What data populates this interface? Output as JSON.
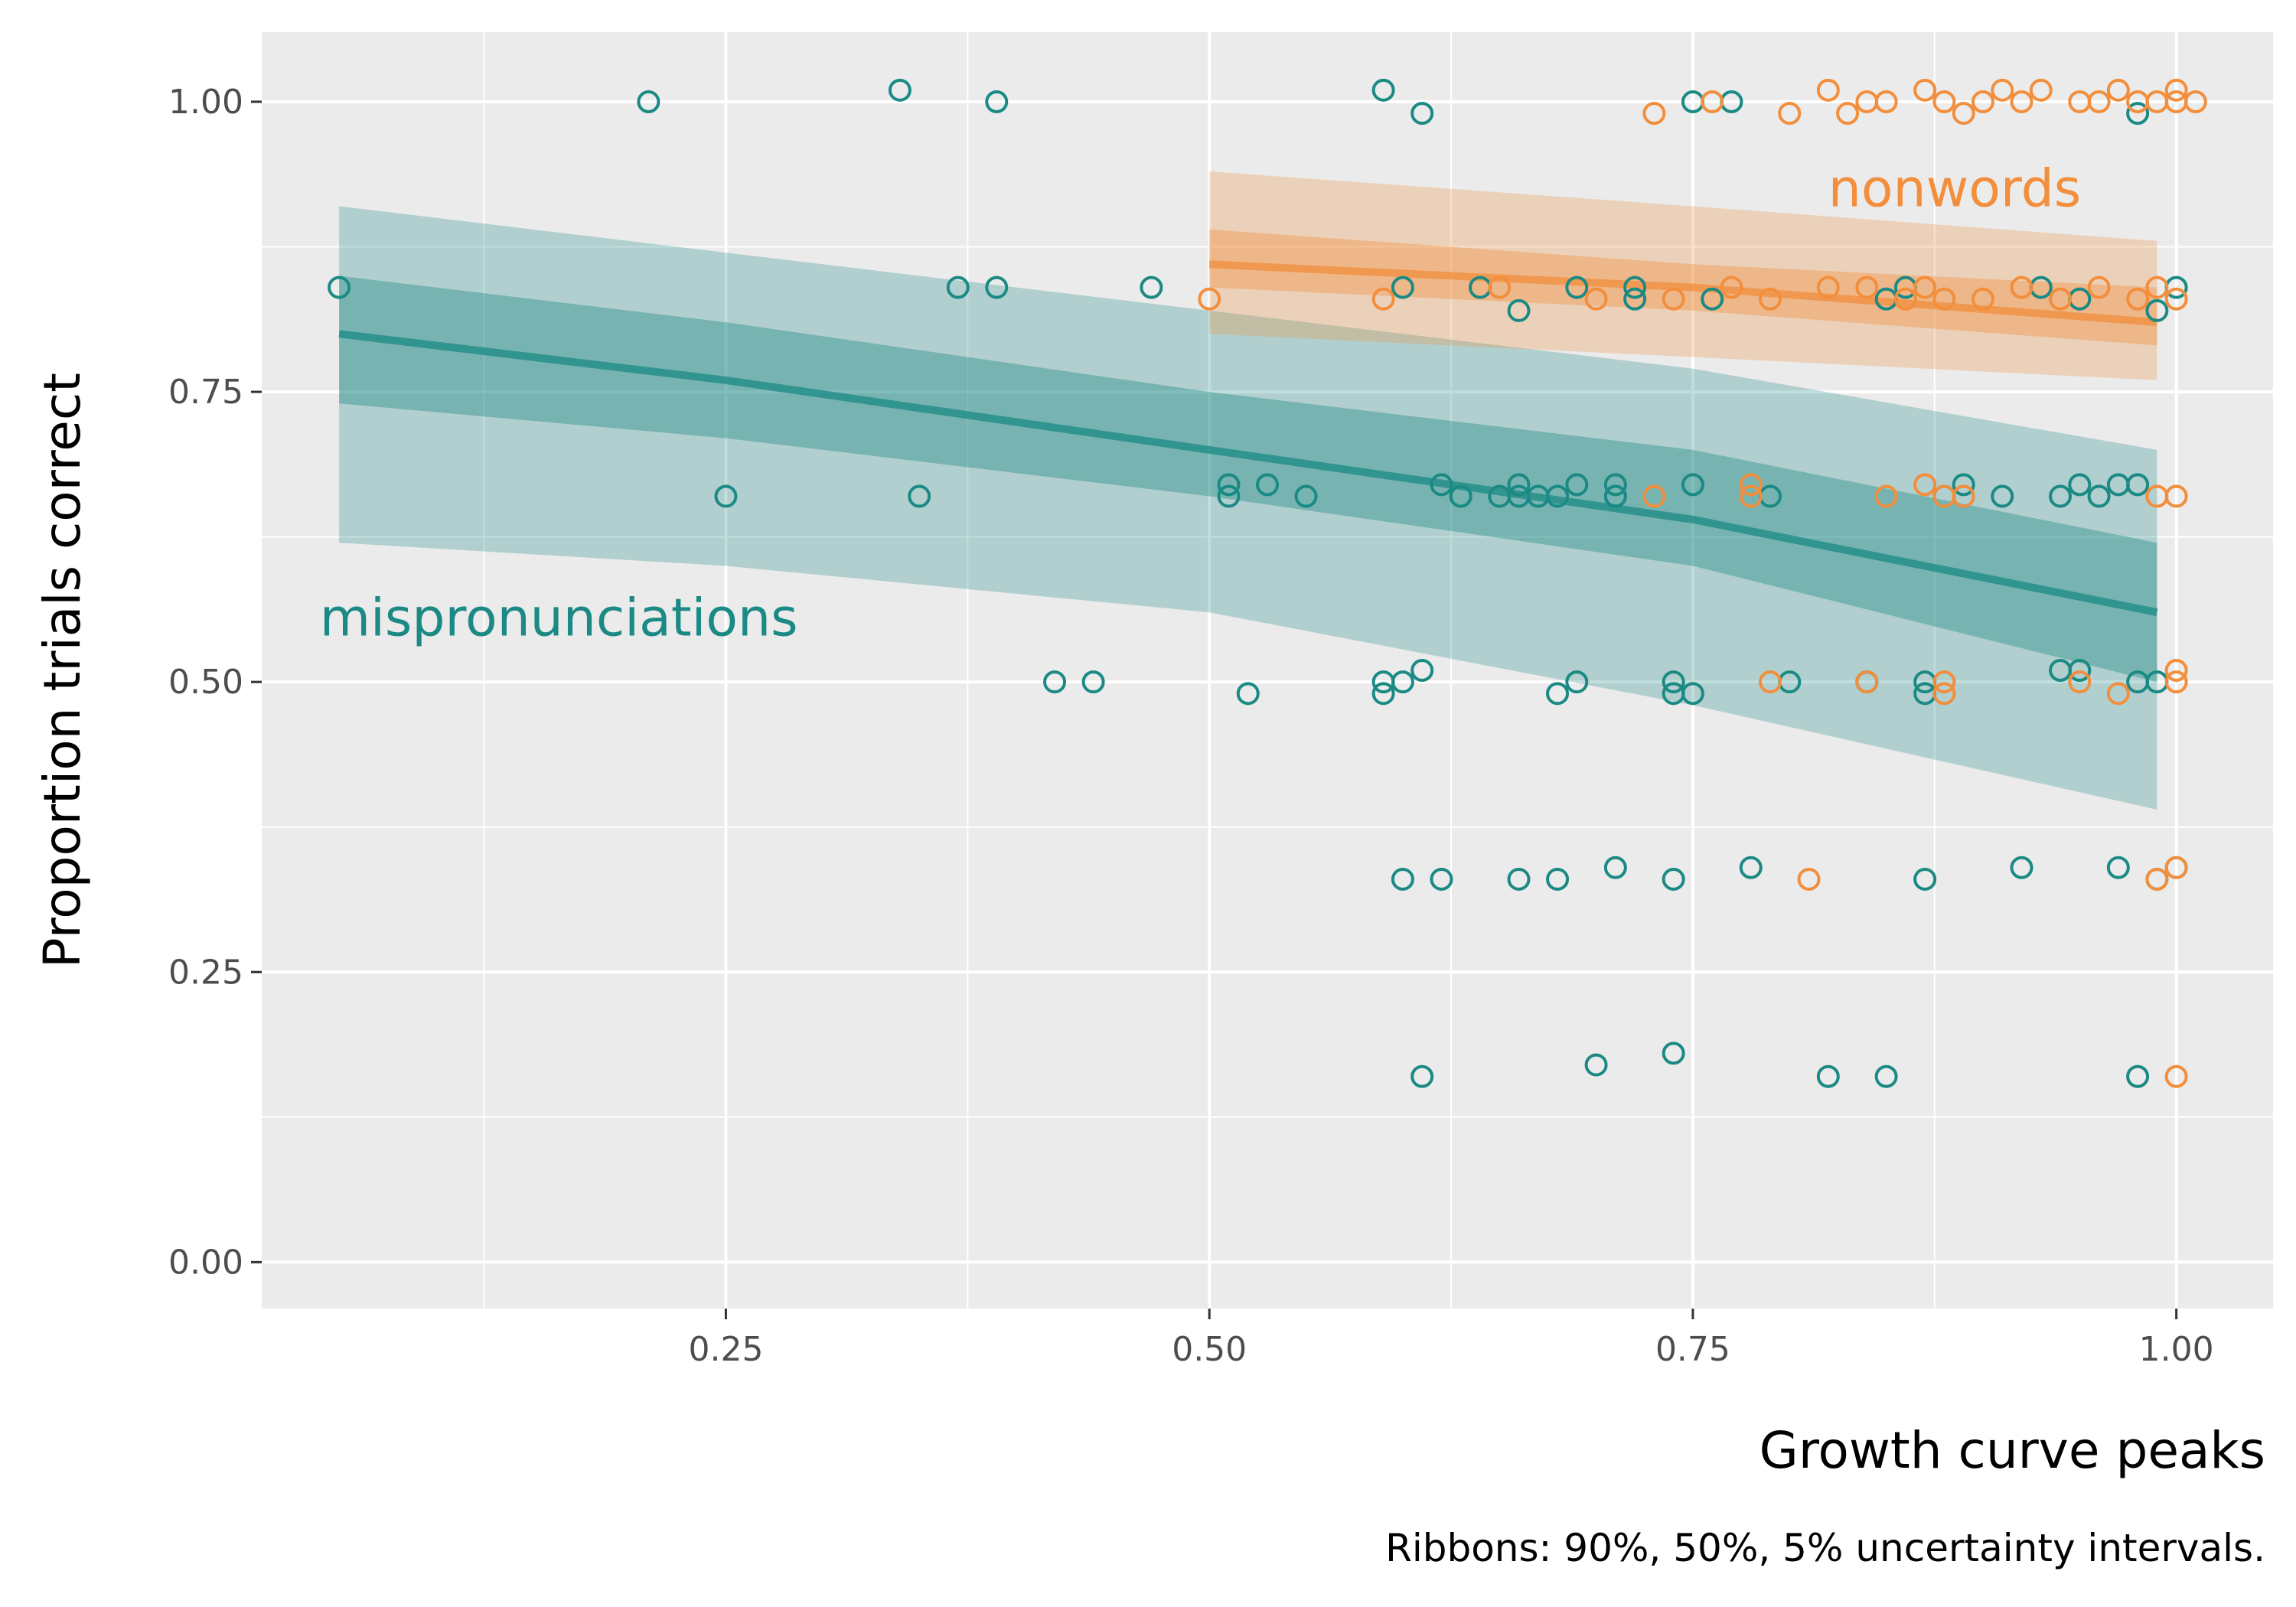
{
  "chart_data": {
    "type": "scatter",
    "title": "",
    "xlabel": "Growth curve peaks",
    "ylabel": "Proportion trials correct",
    "caption": "Ribbons: 90%, 50%, 5% uncertainty intervals.",
    "xlim": [
      0.01,
      1.05
    ],
    "ylim": [
      -0.04,
      1.06
    ],
    "x_ticks": [
      0.25,
      0.5,
      0.75,
      1.0
    ],
    "x_tick_labels": [
      "0.25",
      "0.50",
      "0.75",
      "1.00"
    ],
    "y_ticks": [
      0.0,
      0.25,
      0.5,
      0.75,
      1.0
    ],
    "y_tick_labels": [
      "0.00",
      "0.25",
      "0.50",
      "0.75",
      "1.00"
    ],
    "grid": true,
    "legend": "none",
    "series": [
      {
        "name": "mispronunciations",
        "color": "#1b8a84",
        "label_at": [
          0.04,
          0.54
        ],
        "fit": {
          "x": [
            0.05,
            0.25,
            0.5,
            0.75,
            0.99
          ],
          "mean": [
            0.8,
            0.76,
            0.7,
            0.64,
            0.56
          ],
          "lo50": [
            0.74,
            0.71,
            0.66,
            0.6,
            0.5
          ],
          "hi50": [
            0.85,
            0.81,
            0.75,
            0.7,
            0.62
          ],
          "lo90": [
            0.62,
            0.6,
            0.56,
            0.48,
            0.39
          ],
          "hi90": [
            0.91,
            0.87,
            0.82,
            0.77,
            0.7
          ]
        },
        "points": [
          [
            0.05,
            0.84
          ],
          [
            0.21,
            1.0
          ],
          [
            0.34,
            1.01
          ],
          [
            0.39,
            1.0
          ],
          [
            0.59,
            1.01
          ],
          [
            0.61,
            0.99
          ],
          [
            0.75,
            1.0
          ],
          [
            0.77,
            1.0
          ],
          [
            0.98,
            0.99
          ],
          [
            0.37,
            0.84
          ],
          [
            0.39,
            0.84
          ],
          [
            0.47,
            0.84
          ],
          [
            0.6,
            0.84
          ],
          [
            0.64,
            0.84
          ],
          [
            0.66,
            0.82
          ],
          [
            0.69,
            0.84
          ],
          [
            0.72,
            0.84
          ],
          [
            0.72,
            0.83
          ],
          [
            0.76,
            0.83
          ],
          [
            0.85,
            0.83
          ],
          [
            0.86,
            0.84
          ],
          [
            0.93,
            0.84
          ],
          [
            0.95,
            0.83
          ],
          [
            0.99,
            0.82
          ],
          [
            1.0,
            0.84
          ],
          [
            0.25,
            0.66
          ],
          [
            0.35,
            0.66
          ],
          [
            0.51,
            0.67
          ],
          [
            0.51,
            0.66
          ],
          [
            0.53,
            0.67
          ],
          [
            0.55,
            0.66
          ],
          [
            0.62,
            0.67
          ],
          [
            0.63,
            0.66
          ],
          [
            0.63,
            0.66
          ],
          [
            0.65,
            0.66
          ],
          [
            0.66,
            0.67
          ],
          [
            0.66,
            0.66
          ],
          [
            0.67,
            0.66
          ],
          [
            0.68,
            0.66
          ],
          [
            0.69,
            0.67
          ],
          [
            0.71,
            0.67
          ],
          [
            0.71,
            0.66
          ],
          [
            0.71,
            0.66
          ],
          [
            0.75,
            0.67
          ],
          [
            0.79,
            0.66
          ],
          [
            0.89,
            0.67
          ],
          [
            0.88,
            0.66
          ],
          [
            0.91,
            0.66
          ],
          [
            0.94,
            0.66
          ],
          [
            0.95,
            0.67
          ],
          [
            0.96,
            0.66
          ],
          [
            0.97,
            0.67
          ],
          [
            0.98,
            0.67
          ],
          [
            0.42,
            0.5
          ],
          [
            0.44,
            0.5
          ],
          [
            0.52,
            0.49
          ],
          [
            0.59,
            0.5
          ],
          [
            0.59,
            0.49
          ],
          [
            0.6,
            0.5
          ],
          [
            0.61,
            0.51
          ],
          [
            0.68,
            0.49
          ],
          [
            0.69,
            0.5
          ],
          [
            0.74,
            0.5
          ],
          [
            0.74,
            0.49
          ],
          [
            0.75,
            0.49
          ],
          [
            0.8,
            0.5
          ],
          [
            0.84,
            0.5
          ],
          [
            0.84,
            0.5
          ],
          [
            0.87,
            0.5
          ],
          [
            0.87,
            0.49
          ],
          [
            0.94,
            0.51
          ],
          [
            0.95,
            0.51
          ],
          [
            0.98,
            0.5
          ],
          [
            0.99,
            0.5
          ],
          [
            0.6,
            0.33
          ],
          [
            0.62,
            0.33
          ],
          [
            0.66,
            0.33
          ],
          [
            0.68,
            0.33
          ],
          [
            0.71,
            0.34
          ],
          [
            0.74,
            0.33
          ],
          [
            0.78,
            0.34
          ],
          [
            0.87,
            0.33
          ],
          [
            0.92,
            0.34
          ],
          [
            0.97,
            0.34
          ],
          [
            0.99,
            0.33
          ],
          [
            1.0,
            0.34
          ],
          [
            0.61,
            0.16
          ],
          [
            0.7,
            0.17
          ],
          [
            0.74,
            0.18
          ],
          [
            0.82,
            0.16
          ],
          [
            0.85,
            0.16
          ],
          [
            0.98,
            0.16
          ]
        ]
      },
      {
        "name": "nonwords",
        "color": "#f28e3c",
        "label_at": [
          0.82,
          0.91
        ],
        "fit": {
          "x": [
            0.5,
            0.75,
            0.99
          ],
          "mean": [
            0.86,
            0.84,
            0.81
          ],
          "lo50": [
            0.84,
            0.82,
            0.79
          ],
          "hi50": [
            0.89,
            0.86,
            0.84
          ],
          "lo90": [
            0.8,
            0.78,
            0.76
          ],
          "hi90": [
            0.94,
            0.91,
            0.88
          ]
        },
        "points": [
          [
            0.73,
            0.99
          ],
          [
            0.76,
            1.0
          ],
          [
            0.8,
            0.99
          ],
          [
            0.82,
            1.01
          ],
          [
            0.83,
            0.99
          ],
          [
            0.84,
            1.0
          ],
          [
            0.85,
            1.0
          ],
          [
            0.87,
            1.01
          ],
          [
            0.88,
            1.0
          ],
          [
            0.89,
            0.99
          ],
          [
            0.9,
            1.0
          ],
          [
            0.91,
            1.01
          ],
          [
            0.92,
            1.0
          ],
          [
            0.93,
            1.01
          ],
          [
            0.95,
            1.0
          ],
          [
            0.96,
            1.0
          ],
          [
            0.97,
            1.01
          ],
          [
            0.98,
            1.0
          ],
          [
            0.99,
            1.0
          ],
          [
            1.0,
            1.01
          ],
          [
            1.0,
            1.0
          ],
          [
            1.01,
            1.0
          ],
          [
            0.5,
            0.83
          ],
          [
            0.59,
            0.83
          ],
          [
            0.65,
            0.84
          ],
          [
            0.7,
            0.83
          ],
          [
            0.74,
            0.83
          ],
          [
            0.77,
            0.84
          ],
          [
            0.79,
            0.83
          ],
          [
            0.82,
            0.84
          ],
          [
            0.84,
            0.84
          ],
          [
            0.86,
            0.83
          ],
          [
            0.87,
            0.84
          ],
          [
            0.88,
            0.83
          ],
          [
            0.9,
            0.83
          ],
          [
            0.92,
            0.84
          ],
          [
            0.94,
            0.83
          ],
          [
            0.96,
            0.84
          ],
          [
            0.98,
            0.83
          ],
          [
            0.99,
            0.84
          ],
          [
            1.0,
            0.83
          ],
          [
            0.73,
            0.66
          ],
          [
            0.78,
            0.67
          ],
          [
            0.78,
            0.66
          ],
          [
            0.85,
            0.66
          ],
          [
            0.87,
            0.67
          ],
          [
            0.88,
            0.66
          ],
          [
            0.89,
            0.66
          ],
          [
            0.99,
            0.66
          ],
          [
            1.0,
            0.66
          ],
          [
            0.79,
            0.5
          ],
          [
            0.84,
            0.5
          ],
          [
            0.88,
            0.5
          ],
          [
            0.88,
            0.49
          ],
          [
            0.95,
            0.5
          ],
          [
            0.97,
            0.49
          ],
          [
            1.0,
            0.51
          ],
          [
            1.0,
            0.5
          ],
          [
            0.81,
            0.33
          ],
          [
            0.99,
            0.33
          ],
          [
            1.0,
            0.34
          ],
          [
            1.0,
            0.16
          ]
        ]
      }
    ]
  }
}
